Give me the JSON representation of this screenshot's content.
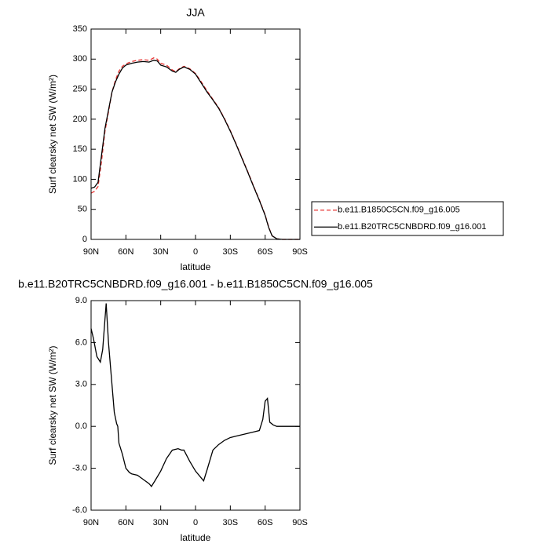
{
  "chart_data": [
    {
      "type": "line",
      "title": "JJA",
      "xlabel": "latitude",
      "ylabel": "Surf clearsky net SW (W/m²)",
      "x": [
        90,
        87,
        84,
        81,
        78,
        75,
        72,
        69,
        66,
        63,
        60,
        55,
        50,
        45,
        40,
        36,
        33,
        30,
        25,
        20,
        17,
        14,
        10,
        5,
        0,
        -5,
        -10,
        -15,
        -20,
        -25,
        -30,
        -35,
        -40,
        -45,
        -50,
        -55,
        -60,
        -63,
        -66,
        -70,
        -75,
        -80,
        -85,
        -90
      ],
      "series": [
        {
          "name": "b.e11.B1850C5CN.f09_g16.005",
          "color": "#e8312f",
          "dash": true,
          "values": [
            77,
            80,
            88,
            130,
            180,
            212,
            245,
            265,
            280,
            288,
            292,
            296,
            298,
            299,
            298,
            302,
            300,
            293,
            290,
            282,
            279,
            284,
            288,
            284,
            276,
            262,
            247,
            233,
            219,
            201,
            181,
            159,
            136,
            113,
            89,
            66,
            41,
            21,
            6,
            1,
            0,
            0,
            0,
            0
          ]
        },
        {
          "name": "b.e11.B20TRC5CNBDRD.f09_g16.001",
          "color": "#000000",
          "dash": false,
          "values": [
            85,
            87,
            95,
            140,
            185,
            215,
            245,
            262,
            275,
            285,
            290,
            293,
            295,
            296,
            295,
            298,
            297,
            290,
            287,
            280,
            278,
            283,
            287,
            283,
            275,
            260,
            245,
            232,
            218,
            200,
            180,
            158,
            135,
            112,
            88,
            65,
            40,
            20,
            6,
            1,
            0,
            0,
            0,
            0
          ]
        }
      ],
      "xlim": [
        90,
        -90
      ],
      "xticks": [
        {
          "value": 90,
          "label": "90N"
        },
        {
          "value": 60,
          "label": "60N"
        },
        {
          "value": 30,
          "label": "30N"
        },
        {
          "value": 0,
          "label": "0"
        },
        {
          "value": -30,
          "label": "30S"
        },
        {
          "value": -60,
          "label": "60S"
        },
        {
          "value": -90,
          "label": "90S"
        }
      ],
      "ylim": [
        0,
        350
      ],
      "yticks": [
        0,
        50,
        100,
        150,
        200,
        250,
        300,
        350
      ],
      "legend": "right"
    },
    {
      "type": "line",
      "title": "b.e11.B20TRC5CNBDRD.f09_g16.001 - b.e11.B1850C5CN.f09_g16.005",
      "xlabel": "latitude",
      "ylabel": "Surf clearsky net SW (W/m²)",
      "x": [
        90,
        88,
        85,
        82,
        80,
        77,
        75,
        72,
        70,
        68,
        67,
        66,
        63,
        60,
        57,
        55,
        50,
        45,
        40,
        38,
        35,
        30,
        25,
        20,
        15,
        12,
        10,
        5,
        0,
        -5,
        -7,
        -10,
        -15,
        -20,
        -25,
        -30,
        -35,
        -40,
        -45,
        -50,
        -55,
        -58,
        -60,
        -62,
        -64,
        -67,
        -70,
        -75,
        -80,
        -85,
        -90
      ],
      "color": "#000000",
      "values": [
        7,
        6.3,
        5,
        4.6,
        5.5,
        8.8,
        6,
        3,
        1,
        0.2,
        0,
        -1.2,
        -2,
        -3,
        -3.3,
        -3.4,
        -3.5,
        -3.8,
        -4.1,
        -4.3,
        -3.9,
        -3.2,
        -2.3,
        -1.7,
        -1.6,
        -1.7,
        -1.7,
        -2.5,
        -3.2,
        -3.7,
        -3.9,
        -3.1,
        -1.7,
        -1.3,
        -1,
        -0.8,
        -0.7,
        -0.6,
        -0.5,
        -0.4,
        -0.3,
        0.5,
        1.8,
        2,
        0.3,
        0.1,
        0,
        0,
        0,
        0,
        0
      ],
      "xlim": [
        90,
        -90
      ],
      "xticks": [
        {
          "value": 90,
          "label": "90N"
        },
        {
          "value": 60,
          "label": "60N"
        },
        {
          "value": 30,
          "label": "30N"
        },
        {
          "value": 0,
          "label": "0"
        },
        {
          "value": -30,
          "label": "30S"
        },
        {
          "value": -60,
          "label": "60S"
        },
        {
          "value": -90,
          "label": "90S"
        }
      ],
      "ylim": [
        -6,
        9
      ],
      "yticks": [
        {
          "value": -6,
          "label": "-6.0"
        },
        {
          "value": -3,
          "label": "-3.0"
        },
        {
          "value": 0,
          "label": "0.0"
        },
        {
          "value": 3,
          "label": "3.0"
        },
        {
          "value": 6,
          "label": "6.0"
        },
        {
          "value": 9,
          "label": "9.0"
        }
      ]
    }
  ]
}
